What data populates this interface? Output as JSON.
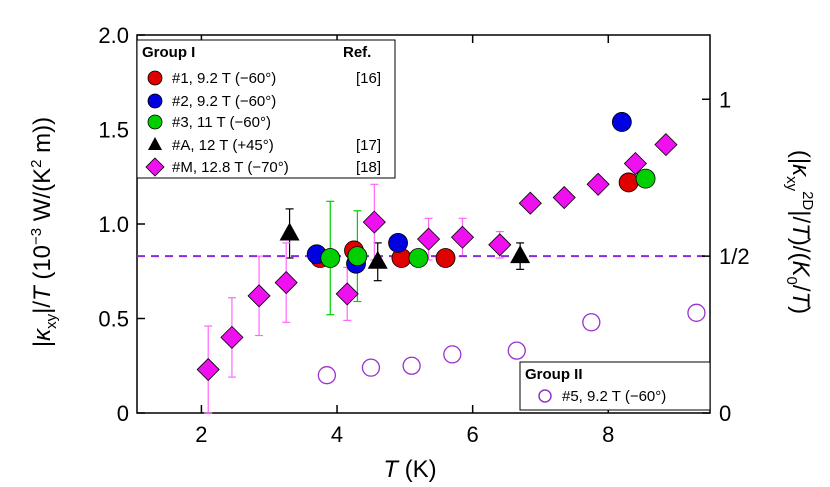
{
  "chart_data": {
    "type": "scatter",
    "xlabel": "T (K)",
    "ylabel_left": "|κxy|/T (10⁻³ W/(K² m))",
    "ylabel_right": "(|κxy2D|/T)/(K0/T)",
    "xlim": [
      1.05,
      9.5
    ],
    "ylim": [
      0,
      2.0
    ],
    "x_ticks": [
      "2",
      "4",
      "6",
      "8"
    ],
    "y_ticks_left": [
      "0",
      "0.5",
      "1.0",
      "1.5",
      "2.0"
    ],
    "y_ticks_right": [
      "0",
      "1/2",
      "1"
    ],
    "reference_line": {
      "y": 0.83,
      "color": "#8a2be2",
      "style": "dashed"
    },
    "legend_group1": {
      "title": "Group I",
      "ref_header": "Ref.",
      "entries": [
        {
          "label": "#1, 9.2 T (−60°)",
          "ref": "[16]"
        },
        {
          "label": "#2, 9.2 T (−60°)",
          "ref": ""
        },
        {
          "label": "#3, 11 T (−60°)",
          "ref": ""
        },
        {
          "label": "#A, 12 T (+45°)",
          "ref": "[17]"
        },
        {
          "label": "#M, 12.8 T (−70°)",
          "ref": "[18]"
        }
      ]
    },
    "legend_group2": {
      "title": "Group II",
      "entries": [
        {
          "label": "#5, 9.2 T (−60°)"
        }
      ]
    },
    "series": [
      {
        "marker": "circle",
        "color": "#e00000",
        "x": [
          3.75,
          4.25,
          4.95,
          5.6,
          8.3
        ],
        "y": [
          0.82,
          0.86,
          0.82,
          0.82,
          1.22
        ],
        "xerr": [
          0.0,
          0.12,
          0.15,
          0.12,
          0.1
        ]
      },
      {
        "marker": "circle",
        "color": "#0000e0",
        "x": [
          3.7,
          4.28,
          4.9,
          8.2
        ],
        "y": [
          0.84,
          0.79,
          0.9,
          1.54
        ]
      },
      {
        "marker": "circle",
        "color": "#00d000",
        "x": [
          3.9,
          4.3,
          5.2,
          8.55
        ],
        "y": [
          0.82,
          0.83,
          0.82,
          1.24
        ],
        "yerr": [
          0.3,
          0.24,
          0.0,
          0.0
        ]
      },
      {
        "marker": "triangle",
        "color": "#000000",
        "x": [
          3.3,
          4.6,
          6.7
        ],
        "y": [
          0.95,
          0.8,
          0.83
        ],
        "yerr": [
          0.13,
          0.1,
          0.07
        ]
      },
      {
        "marker": "diamond",
        "color": "#ee10ee",
        "x": [
          2.1,
          2.45,
          2.85,
          3.25,
          4.15,
          4.55,
          5.35,
          5.85,
          6.4,
          6.85,
          7.35,
          7.85,
          8.4,
          8.85
        ],
        "y": [
          0.23,
          0.4,
          0.62,
          0.69,
          0.63,
          1.01,
          0.92,
          0.93,
          0.89,
          1.11,
          1.14,
          1.21,
          1.32,
          1.42
        ],
        "yerr": [
          0.23,
          0.21,
          0.21,
          0.21,
          0.14,
          0.2,
          0.11,
          0.1,
          0.07,
          0.0,
          0.0,
          0.0,
          0.0,
          0.0
        ],
        "errcolor": "#ff66ff"
      },
      {
        "marker": "open-circle",
        "color": "#9932cc",
        "x": [
          3.85,
          4.5,
          5.1,
          5.7,
          6.65,
          7.75,
          9.3
        ],
        "y": [
          0.2,
          0.24,
          0.25,
          0.31,
          0.33,
          0.48,
          0.53
        ]
      }
    ]
  }
}
